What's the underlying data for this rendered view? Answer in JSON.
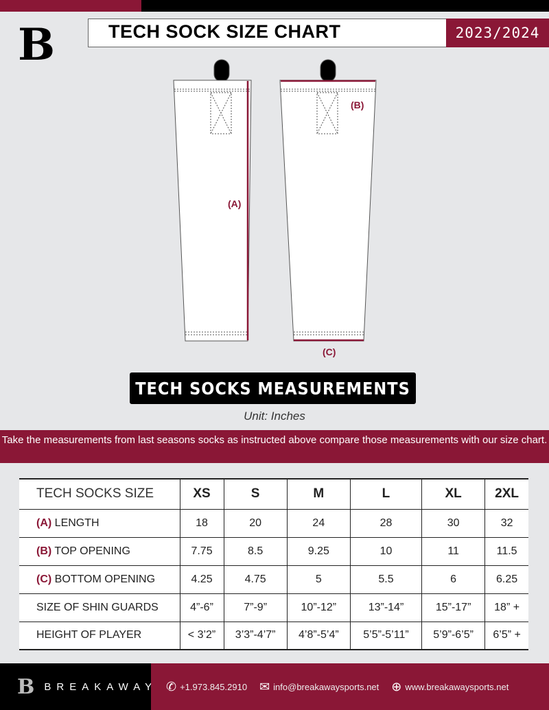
{
  "header": {
    "title": "TECH SOCK SIZE CHART",
    "season": "2023/2024",
    "logo_letter": "B"
  },
  "diagram": {
    "label_a": "(A)",
    "label_b": "(B)",
    "label_c": "(C)"
  },
  "measurements_title": "TECH SOCKS MEASUREMENTS",
  "unit": "Unit: Inches",
  "instructions": "Take the measurements from last seasons socks as instructed above compare those measurements  with our size chart.",
  "table": {
    "header": [
      "TECH SOCKS SIZE",
      "XS",
      "S",
      "M",
      "L",
      "XL",
      "2XL"
    ],
    "rows": [
      {
        "letter": "(A)",
        "label": "LENGTH",
        "values": [
          "18",
          "20",
          "24",
          "28",
          "30",
          "32"
        ]
      },
      {
        "letter": "(B)",
        "label": "TOP OPENING",
        "values": [
          "7.75",
          "8.5",
          "9.25",
          "10",
          "11",
          "11.5"
        ]
      },
      {
        "letter": "(C)",
        "label": "BOTTOM OPENING",
        "values": [
          "4.25",
          "4.75",
          "5",
          "5.5",
          "6",
          "6.25"
        ]
      },
      {
        "letter": "",
        "label": "SIZE OF SHIN GUARDS",
        "values": [
          "4”-6”",
          "7”-9”",
          "10”-12”",
          "13”-14”",
          "15”-17”",
          "18” +"
        ]
      },
      {
        "letter": "",
        "label": "HEIGHT OF PLAYER",
        "values": [
          "< 3’2”",
          "3’3”-4’7”",
          "4’8”-5’4”",
          "5’5”-5’11”",
          "5’9”-6’5”",
          "6’5” +"
        ]
      }
    ]
  },
  "footer": {
    "brand": "BREAKAWAY",
    "phone": "+1.973.845.2910",
    "email": "info@breakawaysports.net",
    "website": "www.breakawaysports.net"
  },
  "colors": {
    "accent": "#8a1736",
    "background": "#e6e7e9"
  }
}
